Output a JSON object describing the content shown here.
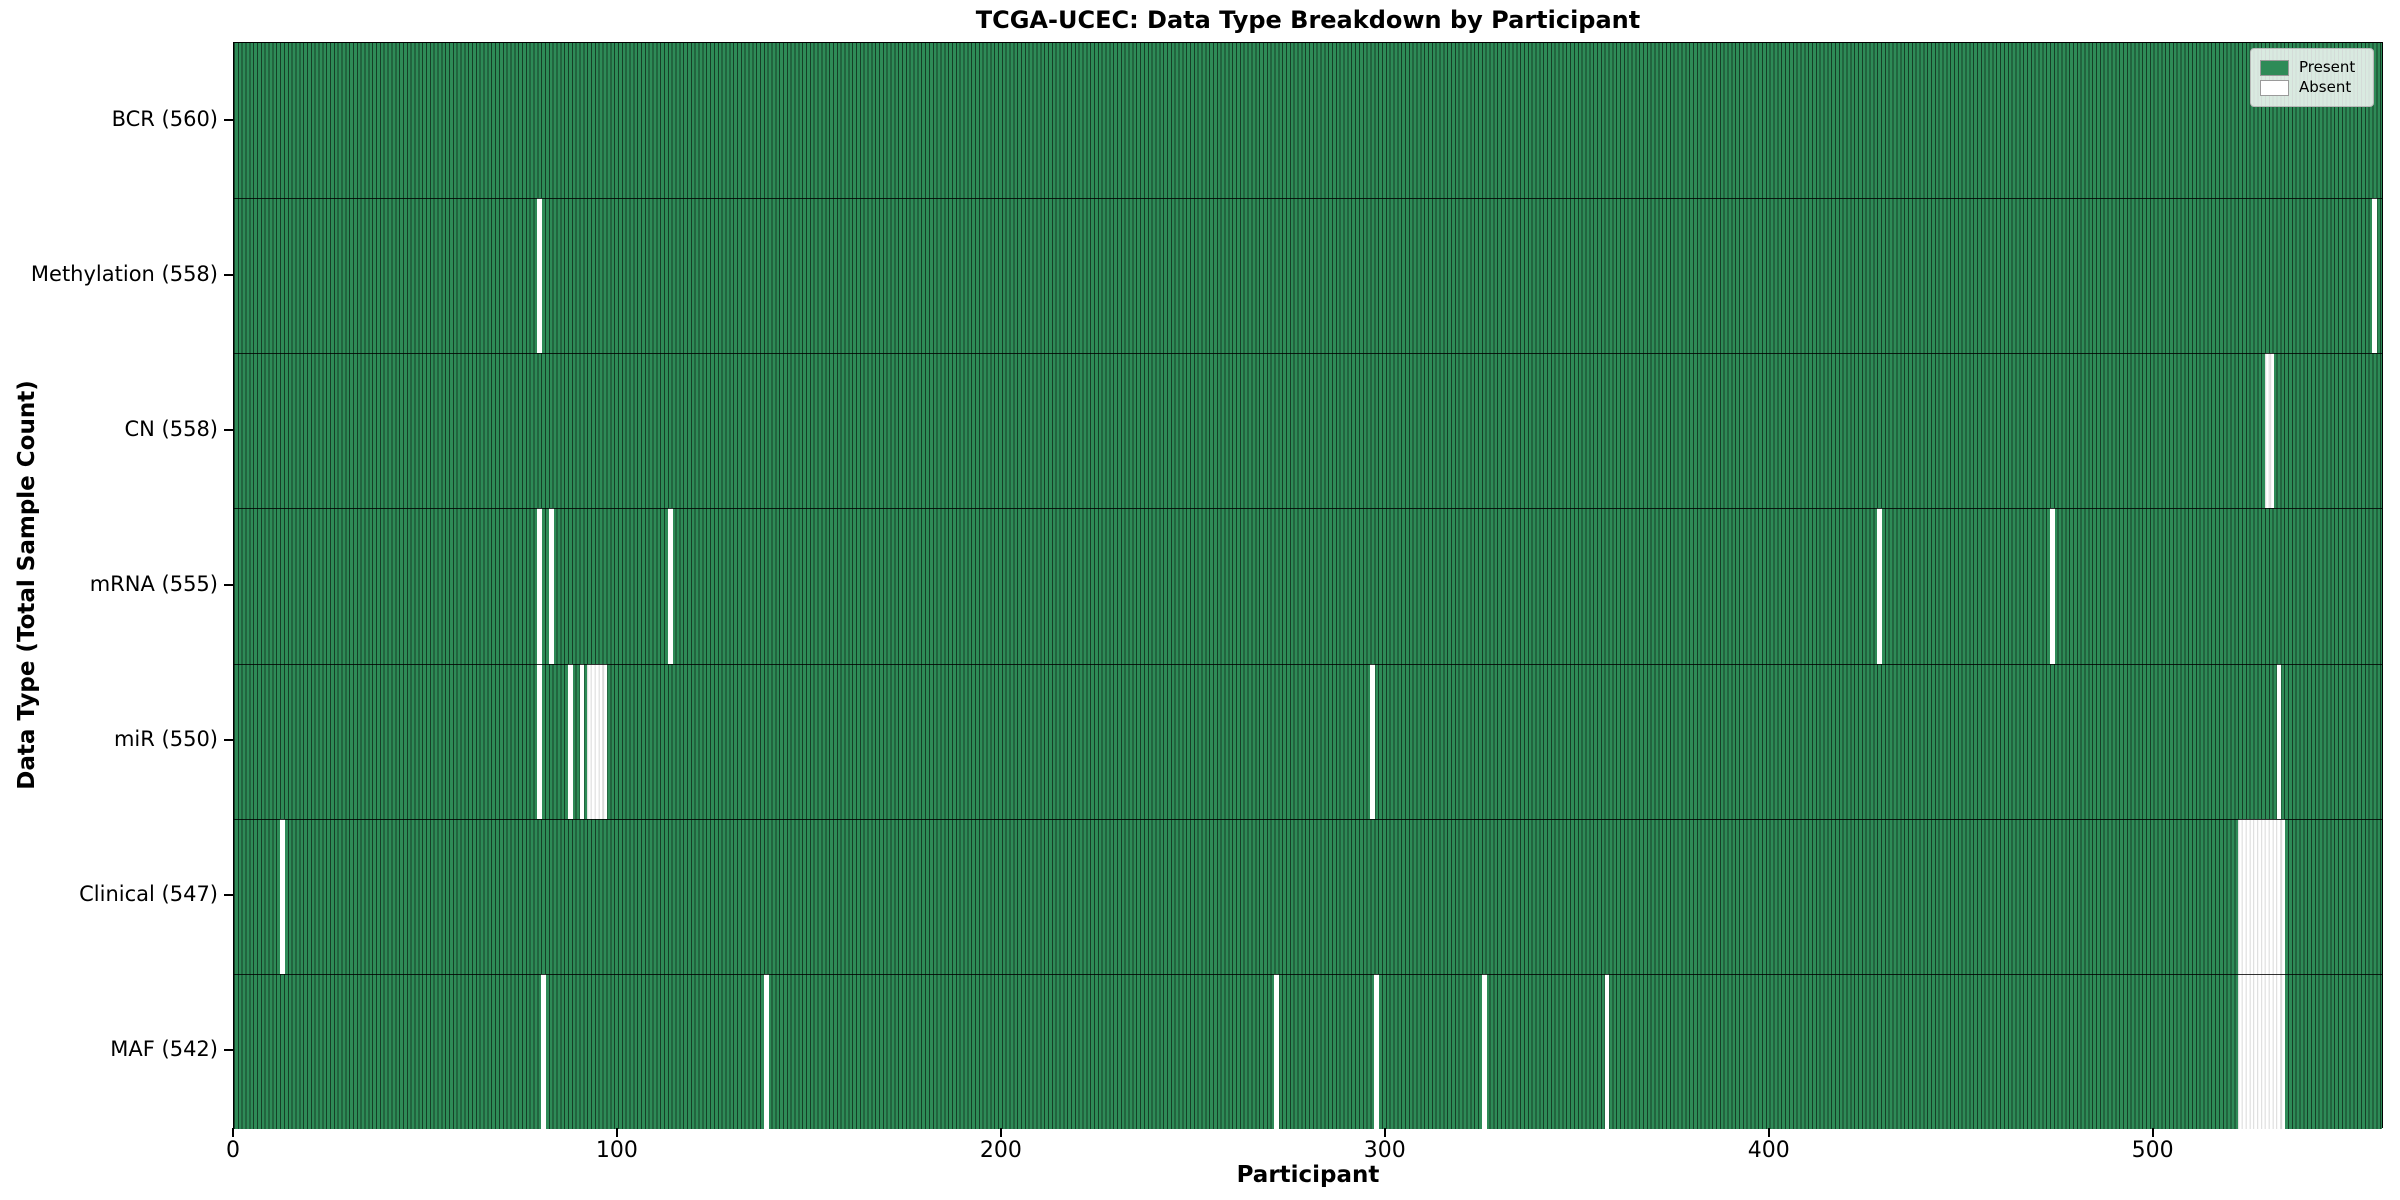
{
  "chart_data": {
    "type": "heatmap",
    "title": "TCGA-UCEC: Data Type Breakdown by Participant",
    "xlabel": "Participant",
    "ylabel": "Data Type (Total Sample Count)",
    "x_ticks": [
      0,
      100,
      200,
      300,
      400,
      500
    ],
    "x_range": [
      0,
      560
    ],
    "n_participants": 560,
    "grid": false,
    "legend_position": "upper right",
    "legend": [
      {
        "label": "Present",
        "color": "#2e8b57"
      },
      {
        "label": "Absent",
        "color": "#ffffff"
      }
    ],
    "rows": [
      {
        "label": "BCR (560)",
        "data_type": "BCR",
        "present_count": 560,
        "absent_participants": []
      },
      {
        "label": "Methylation (558)",
        "data_type": "Methylation",
        "present_count": 558,
        "absent_participants": [
          79,
          557
        ]
      },
      {
        "label": "CN (558)",
        "data_type": "CN",
        "present_count": 558,
        "absent_participants": [
          529,
          530
        ]
      },
      {
        "label": "mRNA (555)",
        "data_type": "mRNA",
        "present_count": 555,
        "absent_participants": [
          79,
          82,
          113,
          428,
          473
        ]
      },
      {
        "label": "miR (550)",
        "data_type": "miR",
        "present_count": 550,
        "absent_participants": [
          79,
          87,
          90,
          92,
          93,
          94,
          95,
          96,
          296,
          532
        ]
      },
      {
        "label": "Clinical (547)",
        "data_type": "Clinical",
        "present_count": 547,
        "absent_participants": [
          12,
          522,
          523,
          524,
          525,
          526,
          527,
          528,
          529,
          530,
          531,
          532,
          533
        ]
      },
      {
        "label": "MAF (542)",
        "data_type": "MAF",
        "present_count": 542,
        "absent_participants": [
          80,
          138,
          271,
          297,
          325,
          357,
          522,
          523,
          524,
          525,
          526,
          527,
          528,
          529,
          530,
          531,
          532,
          533
        ]
      }
    ],
    "colors": {
      "present_fill": "#2e8b57",
      "bar_edge": "rgba(0,0,0,0.55)",
      "absent_fill": "#ffffff",
      "absent_edge": "#d9d9d9",
      "row_separator": "rgba(0,0,0,0.8)",
      "spine": "#000000"
    }
  }
}
